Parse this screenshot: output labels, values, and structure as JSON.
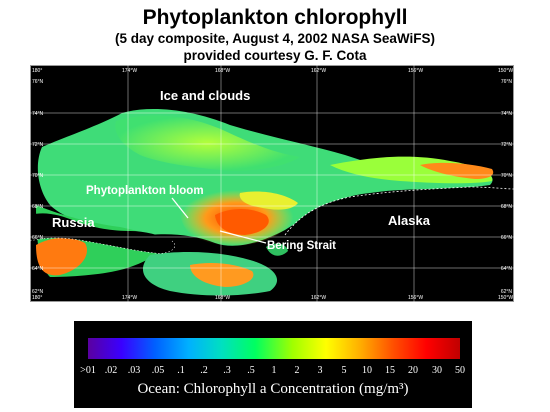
{
  "header": {
    "title": "Phytoplankton chlorophyll",
    "subtitle_line1": "(5 day composite, August 4, 2002 NASA SeaWiFS)",
    "subtitle_line2": "provided courtesy G. F. Cota"
  },
  "map": {
    "lon_labels": [
      "180°",
      "174°W",
      "168°W",
      "162°W",
      "156°W",
      "150°W"
    ],
    "lat_labels": [
      "76°N",
      "74°N",
      "72°N",
      "70°N",
      "68°N",
      "66°N",
      "64°N",
      "62°N"
    ],
    "annotations": {
      "ice": "Ice and clouds",
      "bloom": "Phytoplankton bloom",
      "russia": "Russia",
      "alaska": "Alaska",
      "bering": "Bering Strait"
    },
    "colors": {
      "land": "#000000",
      "ocean_low": "#2fd07a",
      "bloom": "#ff7a1a",
      "coastline": "#ffffff"
    }
  },
  "legend": {
    "ticks": [
      ">01",
      ".02",
      ".03",
      ".05",
      ".1",
      ".2",
      ".3",
      ".5",
      "1",
      "2",
      "3",
      "5",
      "10",
      "15",
      "20",
      "30",
      "50"
    ],
    "title": "Ocean:  Chlorophyll a Concentration (mg/m³)",
    "colorscale": [
      "#5a00a0",
      "#3a00ff",
      "#0060ff",
      "#00b0ff",
      "#00e0c0",
      "#00ff60",
      "#a0ff00",
      "#ffff00",
      "#ffb000",
      "#ff5000",
      "#ff0000",
      "#c00000"
    ]
  }
}
